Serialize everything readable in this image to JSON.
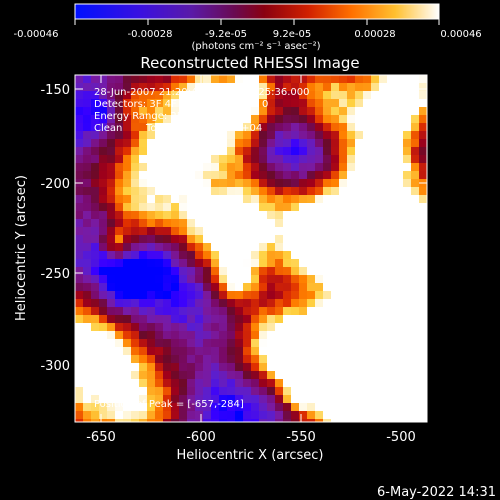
{
  "colorbar": {
    "ticks": [
      "-0.00046",
      "-0.00028",
      "-9.2e-05",
      "9.2e-05",
      "0.00028",
      "0.00046"
    ],
    "units": "(photons cm⁻² s⁻¹ asec⁻²)"
  },
  "title": "Reconstructed RHESSI Image",
  "info": {
    "time_range": "28-Jun-2007 21:20:48.000 to 21:25:36.000",
    "detectors": "Detectors: 3F 4F 5F 6F 7F 8F, Att 0",
    "energy": "Energy Range: 25.0 - 50.0 keV",
    "method": "Clean",
    "counts": "Total counts: 1.13E+04",
    "peak": "Position of Peak = [-657,-284]"
  },
  "axes": {
    "xlabel": "Heliocentric X (arcsec)",
    "ylabel": "Heliocentric Y (arcsec)",
    "xticks": [
      "-650",
      "-600",
      "-550",
      "-500"
    ],
    "yticks": [
      "-150",
      "-200",
      "-250",
      "-300"
    ]
  },
  "footer": {
    "date": "6-May-2022 14:31"
  },
  "colors": {
    "background": "#000000",
    "foreground": "#ffffff",
    "colormap": [
      "#0000ff",
      "#3a00ff",
      "#5a1ed0",
      "#7a1aa0",
      "#7a0a6a",
      "#6a0a2a",
      "#a0001a",
      "#e03000",
      "#ff8000",
      "#ffd040",
      "#ffffff"
    ]
  }
}
